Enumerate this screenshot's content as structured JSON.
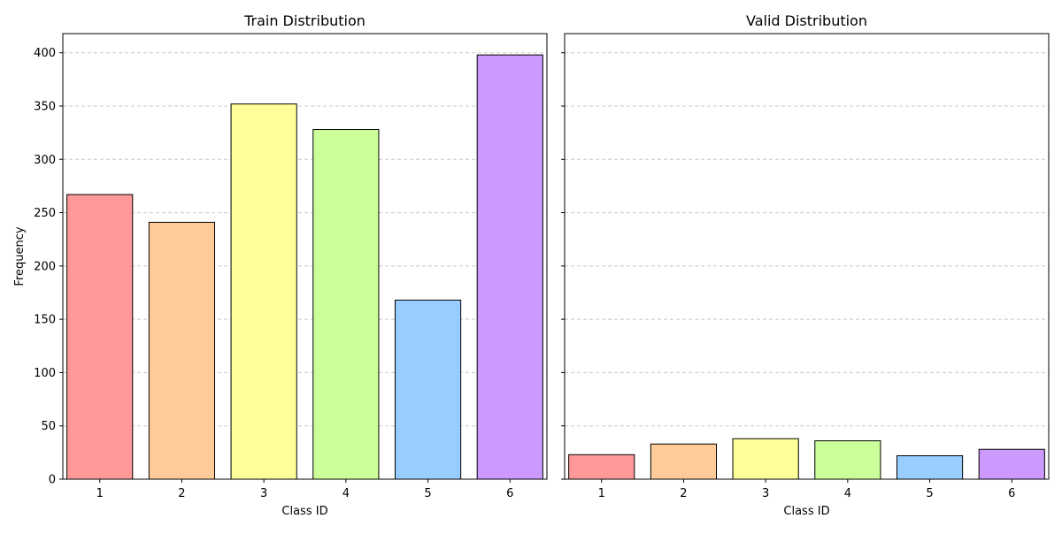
{
  "colors": {
    "bar_fills": [
      "#ff9999",
      "#ffcc99",
      "#ffff99",
      "#ccff99",
      "#99ccff",
      "#cc99ff"
    ],
    "bar_edge": "#000000",
    "grid": "#c8c8c8"
  },
  "chart_data": [
    {
      "type": "bar",
      "title": "Train Distribution",
      "xlabel": "Class ID",
      "ylabel": "Frequency",
      "categories": [
        "1",
        "2",
        "3",
        "4",
        "5",
        "6"
      ],
      "values": [
        267,
        241,
        352,
        328,
        168,
        398
      ],
      "ylim": [
        0,
        418
      ],
      "yticks": [
        0,
        50,
        100,
        150,
        200,
        250,
        300,
        350,
        400
      ],
      "grid": "y-dashed"
    },
    {
      "type": "bar",
      "title": "Valid Distribution",
      "xlabel": "Class ID",
      "ylabel": "",
      "categories": [
        "1",
        "2",
        "3",
        "4",
        "5",
        "6"
      ],
      "values": [
        23,
        33,
        38,
        36,
        22,
        28
      ],
      "ylim": [
        0,
        418
      ],
      "yticks": [
        0,
        50,
        100,
        150,
        200,
        250,
        300,
        350,
        400
      ],
      "grid": "y-dashed",
      "sharey": true
    }
  ]
}
